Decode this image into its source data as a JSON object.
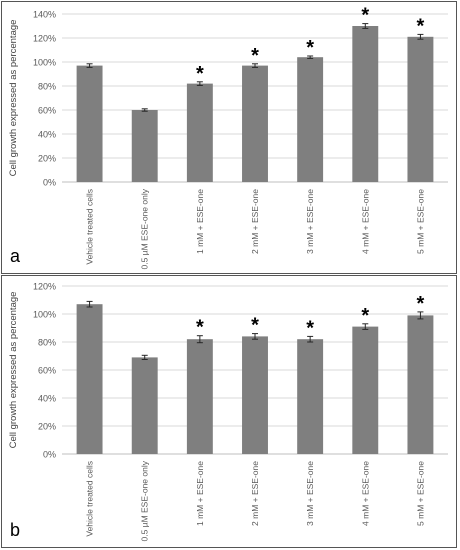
{
  "chart_data": [
    {
      "panel_label": "a",
      "type": "bar",
      "ylabel": "Cell growth expressed as percentage",
      "ylim": [
        0,
        140
      ],
      "ytick_step": 20,
      "ytick_labels": [
        "0%",
        "20%",
        "40%",
        "60%",
        "80%",
        "100%",
        "120%",
        "140%"
      ],
      "grid": true,
      "categories": [
        "Vehicle treated cells",
        "0.5 µM ESE-one only",
        "1 mM + ESE-one",
        "2 mM + ESE-one",
        "3 mM + ESE-one",
        "4 mM + ESE-one",
        "5 mM + ESE-one"
      ],
      "values": [
        97,
        60,
        82,
        97,
        104,
        130,
        121
      ],
      "errors": [
        1.5,
        1,
        1.5,
        1.5,
        1,
        2,
        2
      ],
      "significant": [
        false,
        false,
        true,
        true,
        true,
        true,
        true
      ],
      "significance_marker": "*",
      "bar_color": "#7f7f7f"
    },
    {
      "panel_label": "b",
      "type": "bar",
      "ylabel": "Cell growth expressed as percentage",
      "ylim": [
        0,
        120
      ],
      "ytick_step": 20,
      "ytick_labels": [
        "0%",
        "20%",
        "40%",
        "60%",
        "80%",
        "100%",
        "120%"
      ],
      "grid": true,
      "categories": [
        "Vehicle treated cells",
        "0.5 µM ESE-one only",
        "1 mM + ESE-one",
        "2 mM + ESE-one",
        "3 mM + ESE-one",
        "4 mM + ESE-one",
        "5 mM + ESE-one"
      ],
      "values": [
        107,
        69,
        82,
        84,
        82,
        91,
        99
      ],
      "errors": [
        2,
        1.5,
        2.5,
        2,
        2,
        2,
        2.5
      ],
      "significant": [
        false,
        false,
        true,
        true,
        true,
        true,
        true
      ],
      "significance_marker": "*",
      "bar_color": "#7f7f7f"
    }
  ]
}
